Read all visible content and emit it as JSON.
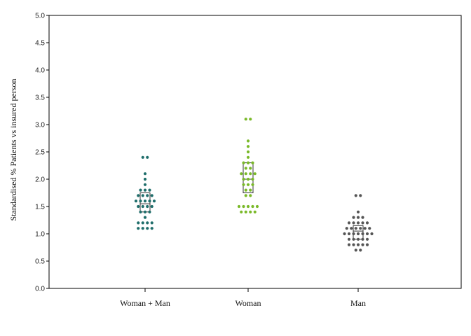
{
  "chart_data": {
    "type": "scatter",
    "subtype": "dot-strip with box",
    "title": "",
    "xlabel": "",
    "ylabel": "Standardised % Patients vs insured person",
    "ylim": [
      0,
      5
    ],
    "yticks": [
      "0.0",
      "0.5",
      "1.0",
      "1.5",
      "2.0",
      "2.5",
      "3.0",
      "3.5",
      "4.0",
      "4.5",
      "5.0"
    ],
    "grid": false,
    "categories": [
      "Woman + Man",
      "Woman",
      "Man"
    ],
    "series": [
      {
        "category": "Woman + Man",
        "color": "#1f6e6b",
        "box": {
          "q1": 1.4,
          "median": 1.55,
          "q3": 1.75
        },
        "values": [
          2.4,
          2.4,
          2.1,
          2.0,
          1.9,
          1.8,
          1.8,
          1.8,
          1.7,
          1.7,
          1.7,
          1.7,
          1.6,
          1.6,
          1.6,
          1.6,
          1.6,
          1.5,
          1.5,
          1.5,
          1.5,
          1.4,
          1.4,
          1.4,
          1.3,
          1.2,
          1.2,
          1.2,
          1.2,
          1.1,
          1.1,
          1.1,
          1.1
        ]
      },
      {
        "category": "Woman",
        "color": "#7ab929",
        "box": {
          "q1": 1.75,
          "median": 2.0,
          "q3": 2.3
        },
        "values": [
          3.1,
          3.1,
          2.7,
          2.6,
          2.5,
          2.4,
          2.3,
          2.3,
          2.3,
          2.2,
          2.2,
          2.1,
          2.1,
          2.1,
          2.1,
          2.0,
          2.0,
          2.0,
          1.9,
          1.9,
          1.9,
          1.8,
          1.8,
          1.7,
          1.7,
          1.5,
          1.5,
          1.5,
          1.5,
          1.5,
          1.4,
          1.4,
          1.4,
          1.4
        ]
      },
      {
        "category": "Man",
        "color": "#555555",
        "box": {
          "q1": 0.9,
          "median": 1.05,
          "q3": 1.15
        },
        "values": [
          1.7,
          1.7,
          1.4,
          1.3,
          1.3,
          1.3,
          1.2,
          1.2,
          1.2,
          1.2,
          1.2,
          1.1,
          1.1,
          1.1,
          1.1,
          1.1,
          1.1,
          1.0,
          1.0,
          1.0,
          1.0,
          1.0,
          1.0,
          1.0,
          0.9,
          0.9,
          0.9,
          0.9,
          0.9,
          0.8,
          0.8,
          0.8,
          0.8,
          0.8,
          0.7,
          0.7
        ]
      }
    ]
  }
}
